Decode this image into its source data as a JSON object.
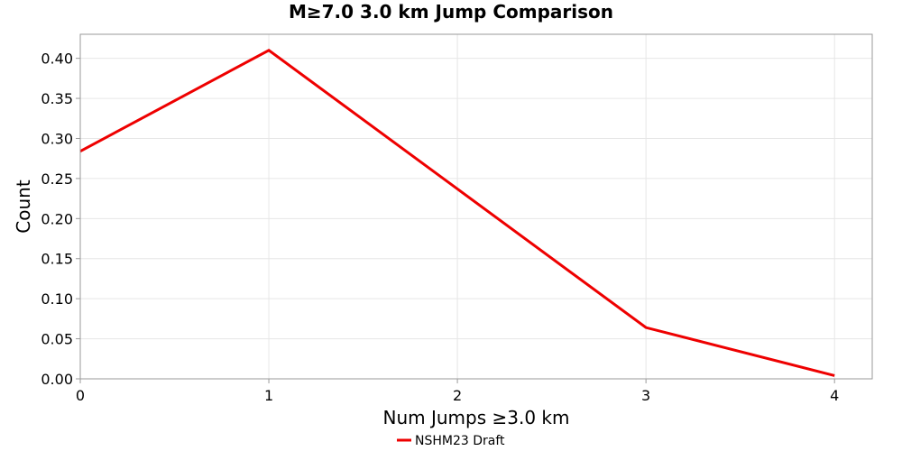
{
  "chart_data": {
    "type": "line",
    "title": "M≥7.0 3.0 km Jump Comparison",
    "xlabel": "Num Jumps ≥3.0 km",
    "ylabel": "Count",
    "xlim": [
      0,
      4.2
    ],
    "ylim": [
      0,
      0.43
    ],
    "xticks": [
      "0",
      "1",
      "2",
      "3",
      "4"
    ],
    "xtick_values": [
      0,
      1,
      2,
      3,
      4
    ],
    "yticks": [
      "0.00",
      "0.05",
      "0.10",
      "0.15",
      "0.20",
      "0.25",
      "0.30",
      "0.35",
      "0.40"
    ],
    "ytick_values": [
      0,
      0.05,
      0.1,
      0.15,
      0.2,
      0.25,
      0.3,
      0.35,
      0.4
    ],
    "grid": true,
    "legend_position": "bottom-center",
    "series": [
      {
        "name": "NSHM23 Draft",
        "color": "#ee0000",
        "x": [
          0,
          1,
          2,
          3,
          4
        ],
        "values": [
          0.284,
          0.41,
          0.237,
          0.064,
          0.004
        ]
      }
    ]
  }
}
